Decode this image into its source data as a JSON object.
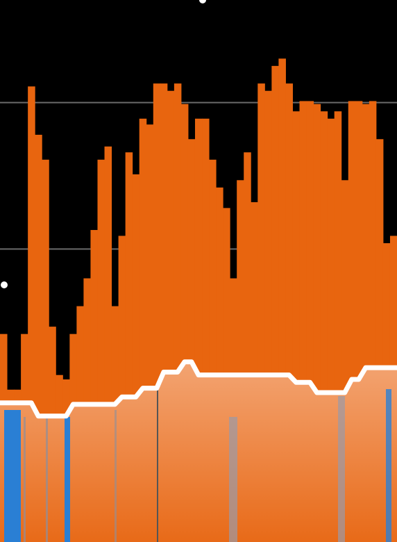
{
  "chart_data": {
    "type": "bar",
    "ylim": [
      0,
      3.7
    ],
    "yticks": [
      2,
      3
    ],
    "grid": true,
    "series": [
      {
        "type": "bar",
        "color": "#e8650f",
        "values": [
          1.42,
          1.04,
          1.04,
          1.42,
          3.11,
          2.78,
          2.61,
          1.47,
          1.14,
          1.11,
          1.42,
          1.61,
          1.8,
          2.13,
          2.61,
          2.7,
          1.61,
          2.09,
          2.66,
          2.51,
          2.89,
          2.85,
          3.13,
          3.13,
          3.08,
          3.13,
          2.99,
          2.75,
          2.89,
          2.89,
          2.61,
          2.42,
          2.28,
          1.8,
          2.47,
          2.66,
          2.32,
          3.13,
          3.08,
          3.25,
          3.3,
          3.13,
          2.94,
          3.01,
          3.01,
          2.99,
          2.94,
          2.89,
          2.94,
          2.47,
          3.01,
          3.01,
          2.99,
          3.01,
          2.75,
          2.04,
          2.09
        ]
      },
      {
        "type": "line",
        "color": "#ffffff",
        "values": [
          0.95,
          0.95,
          0.95,
          0.95,
          0.95,
          0.86,
          0.86,
          0.86,
          0.86,
          0.86,
          0.94,
          0.94,
          0.94,
          0.94,
          0.94,
          0.94,
          0.94,
          0.99,
          0.99,
          0.99,
          1.05,
          1.05,
          1.05,
          1.16,
          1.16,
          1.16,
          1.23,
          1.23,
          1.14,
          1.14,
          1.14,
          1.14,
          1.14,
          1.14,
          1.14,
          1.14,
          1.14,
          1.14,
          1.14,
          1.14,
          1.14,
          1.14,
          1.09,
          1.09,
          1.09,
          1.02,
          1.02,
          1.02,
          1.02,
          1.02,
          1.11,
          1.11,
          1.19,
          1.19,
          1.19,
          1.19,
          1.19
        ]
      }
    ]
  }
}
